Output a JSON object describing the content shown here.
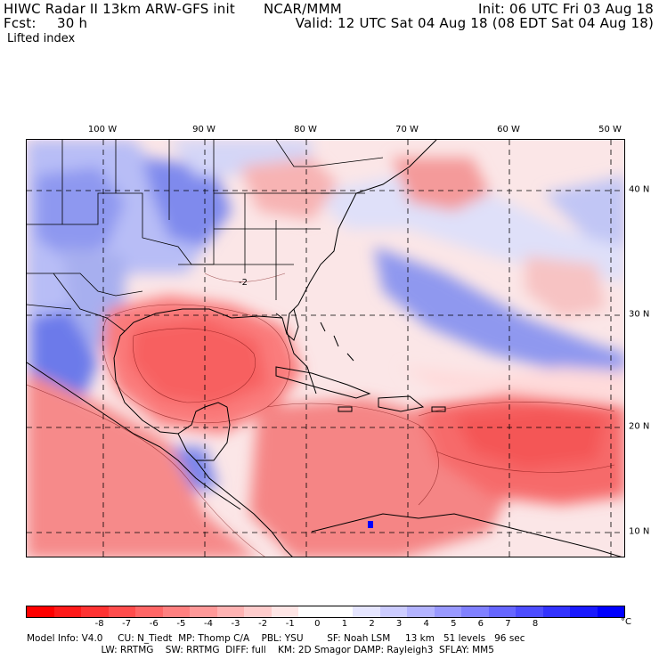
{
  "header": {
    "model_line": "HIWC Radar II 13km ARW-GFS init",
    "org": "NCAR/MMM",
    "init": "Init: 06 UTC Fri 03 Aug 18",
    "fcst_label": "Fcst:",
    "fcst_value": "30 h",
    "valid": "Valid: 12 UTC Sat 04 Aug 18 (08 EDT Sat 04 Aug 18)",
    "field": "Lifted index"
  },
  "map": {
    "lon_labels": [
      "100 W",
      "90 W",
      "80 W",
      "70 W",
      "60 W",
      "50 W"
    ],
    "lat_labels": [
      "40 N",
      "30 N",
      "20 N",
      "10 N"
    ],
    "contour_label": "-2"
  },
  "colorbar": {
    "colors": [
      "#ff0000",
      "#ff1a1a",
      "#ff3333",
      "#ff4d4d",
      "#ff6666",
      "#ff8080",
      "#ff9999",
      "#ffb3b3",
      "#ffcccc",
      "#ffe6e6",
      "#ffffff",
      "#ffffff",
      "#e6e6ff",
      "#ccccff",
      "#b3b3ff",
      "#9999ff",
      "#8080ff",
      "#6666ff",
      "#4d4dff",
      "#3333ff",
      "#1a1aff",
      "#0000ff"
    ],
    "ticks": [
      "-8",
      "-7",
      "-6",
      "-5",
      "-4",
      "-3",
      "-2",
      "-1",
      "0",
      "1",
      "2",
      "3",
      "4",
      "5",
      "6",
      "7",
      "8"
    ],
    "unit": "°C"
  },
  "footer": {
    "line1": "Model Info: V4.0     CU: N_Tiedt  MP: Thomp C/A    PBL: YSU        SF: Noah LSM     13 km   51 levels   96 sec",
    "line2": "                         LW: RRTMG    SW: RRTMG  DIFF: full    KM: 2D Smagor DAMP: Rayleigh3  SFLAY: MM5"
  }
}
